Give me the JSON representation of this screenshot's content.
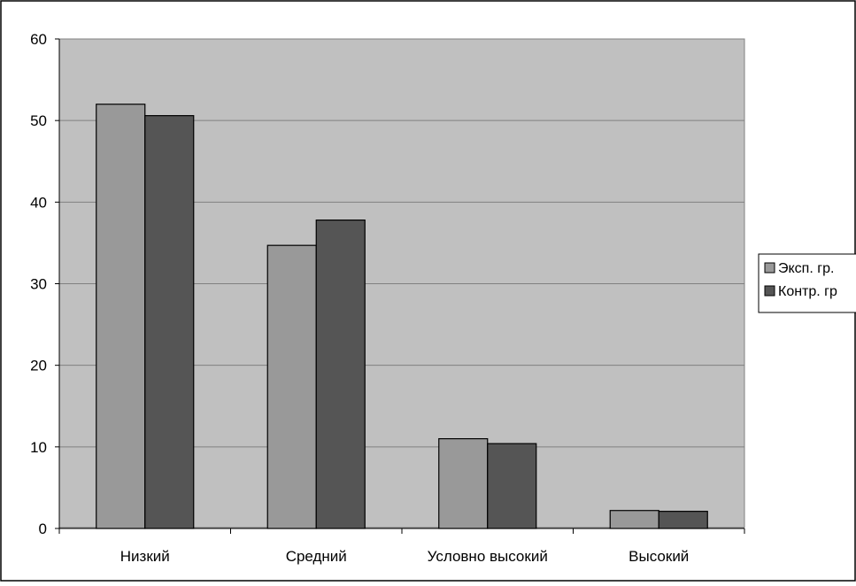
{
  "chart_data": {
    "type": "bar",
    "title": "",
    "xlabel": "",
    "ylabel": "",
    "categories": [
      "Низкий",
      "Средний",
      "Условно высокий",
      "Высокий"
    ],
    "series": [
      {
        "name": "Эксп. гр.",
        "values": [
          52,
          34.7,
          11,
          2.2
        ],
        "color": "#999999"
      },
      {
        "name": "Контр. гр",
        "values": [
          50.6,
          37.8,
          10.4,
          2.1
        ],
        "color": "#555555"
      }
    ],
    "ylim": [
      0,
      60
    ],
    "yticks": [
      0,
      10,
      20,
      30,
      40,
      50,
      60
    ],
    "grid": true,
    "legend_position": "right",
    "plot_background": "#c0c0c0"
  }
}
